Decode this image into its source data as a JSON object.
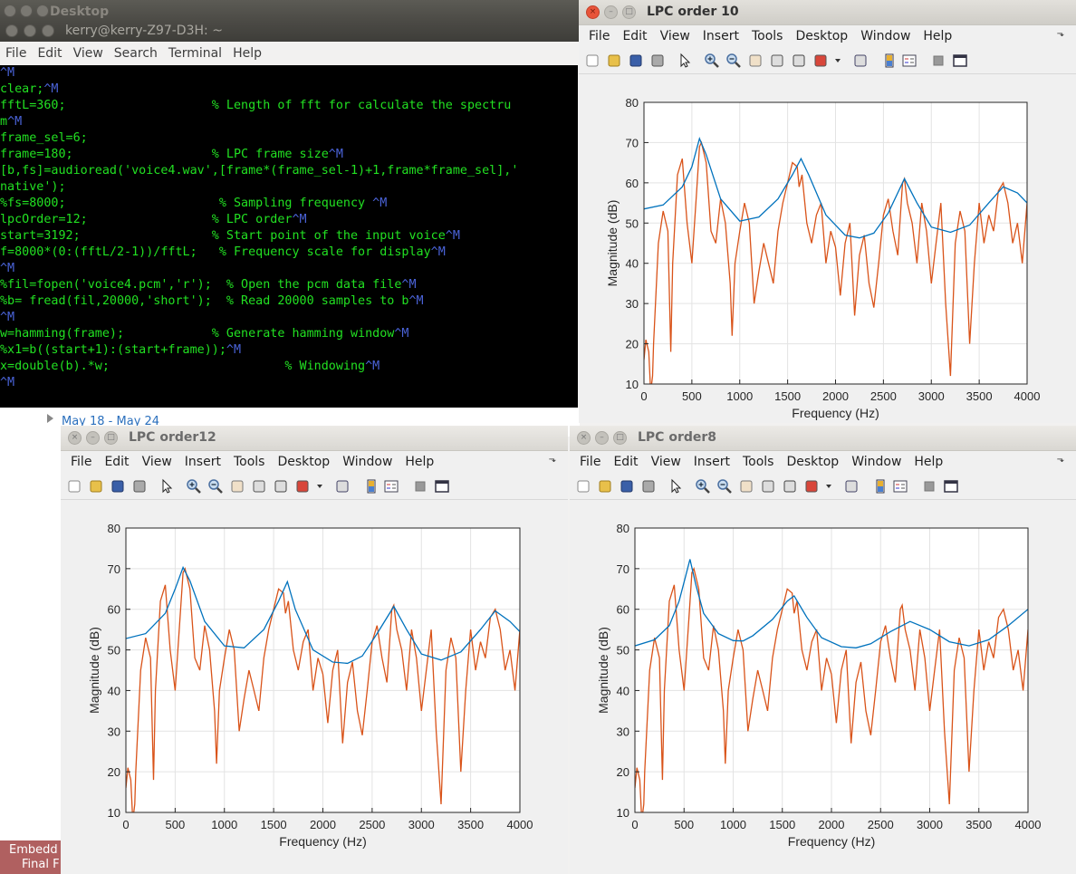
{
  "desktop": {
    "top_title": "Desktop",
    "calendar_range": "May 18 - May 24",
    "embedded_label_1": "Embedd",
    "embedded_label_2": "Final F"
  },
  "terminal": {
    "title": "kerry@kerry-Z97-D3H: ~",
    "menu": [
      "File",
      "Edit",
      "View",
      "Search",
      "Terminal",
      "Help"
    ],
    "lines": [
      {
        "code": "",
        "ctl": "^M"
      },
      {
        "code": "clear;",
        "ctl": "^M"
      },
      {
        "code": "fftL=360;                    % Length of fft for calculate the spectru",
        "ctl": ""
      },
      {
        "code": "m",
        "ctl": "^M"
      },
      {
        "code": "frame_sel=6;",
        "ctl": ""
      },
      {
        "code": "frame=180;                   % LPC frame size",
        "ctl": "^M"
      },
      {
        "code": "[b,fs]=audioread('voice4.wav',[frame*(frame_sel-1)+1,frame*frame_sel],'",
        "ctl": ""
      },
      {
        "code": "native');",
        "ctl": ""
      },
      {
        "code": "%fs=8000;                     % Sampling frequency ",
        "ctl": "^M"
      },
      {
        "code": "lpcOrder=12;                 % LPC order",
        "ctl": "^M"
      },
      {
        "code": "start=3192;                  % Start point of the input voice",
        "ctl": "^M"
      },
      {
        "code": "f=8000*(0:(fftL/2-1))/fftL;   % Frequency scale for display",
        "ctl": "^M"
      },
      {
        "code": "",
        "ctl": "^M"
      },
      {
        "code": "%fil=fopen('voice4.pcm','r');  % Open the pcm data file",
        "ctl": "^M"
      },
      {
        "code": "%b= fread(fil,20000,'short');  % Read 20000 samples to b",
        "ctl": "^M"
      },
      {
        "code": "",
        "ctl": "^M"
      },
      {
        "code": "w=hamming(frame);            % Generate hamming window",
        "ctl": "^M"
      },
      {
        "code": "%x1=b((start+1):(start+frame));",
        "ctl": "^M"
      },
      {
        "code": "x=double(b).*w;                        % Windowing",
        "ctl": "^M"
      },
      {
        "code": "",
        "ctl": "^M"
      }
    ]
  },
  "figure_menu": [
    "File",
    "Edit",
    "View",
    "Insert",
    "Tools",
    "Desktop",
    "Window",
    "Help"
  ],
  "colors": {
    "lpc_curve": "#0072bd",
    "spectrum_curve": "#d95319",
    "terminal_text": "#22e022",
    "terminal_ctl": "#4a63d8"
  },
  "figures": [
    {
      "id": "lpc10",
      "title": "LPC order 10",
      "chart_data": {
        "type": "line",
        "xlabel": "Frequency (Hz)",
        "ylabel": "Magnitude (dB)",
        "xlim": [
          0,
          4000
        ],
        "ylim": [
          10,
          80
        ],
        "xticks": [
          0,
          500,
          1000,
          1500,
          2000,
          2500,
          3000,
          3500,
          4000
        ],
        "yticks": [
          10,
          20,
          30,
          40,
          50,
          60,
          70,
          80
        ],
        "grid": true,
        "series": [
          {
            "key": "lpc",
            "x": [
              0,
              200,
              400,
              500,
              580,
              650,
              800,
              1000,
              1200,
              1400,
              1550,
              1640,
              1720,
              1900,
              2100,
              2250,
              2400,
              2550,
              2720,
              2850,
              3000,
              3200,
              3400,
              3600,
              3750,
              3900,
              4000
            ],
            "y": [
              53.5,
              54.5,
              59,
              64,
              71,
              67,
              56,
              50.5,
              51.5,
              56,
              62,
              66,
              62,
              52,
              47,
              46.3,
              47.5,
              52.5,
              61,
              55,
              49,
              47.7,
              49.5,
              55,
              59,
              57.5,
              55
            ]
          },
          {
            "key": "spectrum",
            "x": [
              0,
              20,
              50,
              70,
              90,
              100,
              150,
              200,
              250,
              280,
              300,
              350,
              400,
              450,
              500,
              550,
              580,
              600,
              650,
              700,
              750,
              800,
              850,
              900,
              920,
              950,
              1000,
              1050,
              1100,
              1150,
              1200,
              1250,
              1300,
              1350,
              1400,
              1450,
              1500,
              1550,
              1600,
              1620,
              1650,
              1700,
              1750,
              1800,
              1850,
              1900,
              1950,
              2000,
              2050,
              2100,
              2150,
              2200,
              2250,
              2300,
              2350,
              2400,
              2450,
              2500,
              2550,
              2600,
              2650,
              2700,
              2720,
              2750,
              2800,
              2850,
              2900,
              2950,
              3000,
              3050,
              3100,
              3150,
              3200,
              3250,
              3300,
              3350,
              3400,
              3450,
              3500,
              3550,
              3600,
              3650,
              3700,
              3750,
              3800,
              3850,
              3900,
              3950,
              4000
            ],
            "y": [
              16,
              21,
              18,
              8,
              12,
              20,
              45,
              53,
              48,
              18,
              40,
              62,
              66,
              50,
              40,
              58,
              69,
              70,
              65,
              48,
              45,
              56,
              50,
              35,
              22,
              40,
              48,
              55,
              50,
              30,
              38,
              45,
              40,
              35,
              48,
              55,
              60,
              65,
              64,
              59,
              62,
              50,
              45,
              52,
              55,
              40,
              48,
              44,
              32,
              45,
              50,
              27,
              42,
              47,
              35,
              29,
              40,
              52,
              56,
              48,
              42,
              60,
              61,
              55,
              50,
              40,
              55,
              48,
              35,
              45,
              55,
              30,
              12,
              45,
              53,
              48,
              20,
              40,
              55,
              45,
              52,
              48,
              58,
              60,
              55,
              45,
              50,
              40,
              55
            ]
          }
        ]
      }
    },
    {
      "id": "lpc12",
      "title": "LPC order12",
      "chart_data": {
        "type": "line",
        "xlabel": "Frequency (Hz)",
        "ylabel": "Magnitude (dB)",
        "xlim": [
          0,
          4000
        ],
        "ylim": [
          10,
          80
        ],
        "xticks": [
          0,
          500,
          1000,
          1500,
          2000,
          2500,
          3000,
          3500,
          4000
        ],
        "yticks": [
          10,
          20,
          30,
          40,
          50,
          60,
          70,
          80
        ],
        "grid": true,
        "series": [
          {
            "key": "lpc",
            "x": [
              0,
              200,
              400,
              500,
              580,
              650,
              800,
              1000,
              1200,
              1400,
              1550,
              1640,
              1720,
              1900,
              2100,
              2250,
              2400,
              2550,
              2720,
              2850,
              3000,
              3200,
              3400,
              3600,
              3750,
              3900,
              4000
            ],
            "y": [
              52.8,
              54,
              59,
              65,
              70.3,
              67,
              57,
              51,
              50.5,
              55,
              62,
              66.8,
              60,
              50,
              47,
              46.7,
              48.5,
              54,
              60.7,
              55,
              49,
              47.5,
              49.5,
              55,
              59.6,
              57,
              54.5
            ]
          },
          {
            "key": "spectrum",
            "x": [
              0,
              20,
              50,
              70,
              90,
              100,
              150,
              200,
              250,
              280,
              300,
              350,
              400,
              450,
              500,
              550,
              580,
              600,
              650,
              700,
              750,
              800,
              850,
              900,
              920,
              950,
              1000,
              1050,
              1100,
              1150,
              1200,
              1250,
              1300,
              1350,
              1400,
              1450,
              1500,
              1550,
              1600,
              1620,
              1650,
              1700,
              1750,
              1800,
              1850,
              1900,
              1950,
              2000,
              2050,
              2100,
              2150,
              2200,
              2250,
              2300,
              2350,
              2400,
              2450,
              2500,
              2550,
              2600,
              2650,
              2700,
              2720,
              2750,
              2800,
              2850,
              2900,
              2950,
              3000,
              3050,
              3100,
              3150,
              3200,
              3250,
              3300,
              3350,
              3400,
              3450,
              3500,
              3550,
              3600,
              3650,
              3700,
              3750,
              3800,
              3850,
              3900,
              3950,
              4000
            ],
            "y": [
              16,
              21,
              18,
              8,
              12,
              20,
              45,
              53,
              48,
              18,
              40,
              62,
              66,
              50,
              40,
              58,
              69,
              70,
              65,
              48,
              45,
              56,
              50,
              35,
              22,
              40,
              48,
              55,
              50,
              30,
              38,
              45,
              40,
              35,
              48,
              55,
              60,
              65,
              64,
              59,
              62,
              50,
              45,
              52,
              55,
              40,
              48,
              44,
              32,
              45,
              50,
              27,
              42,
              47,
              35,
              29,
              40,
              52,
              56,
              48,
              42,
              60,
              61,
              55,
              50,
              40,
              55,
              48,
              35,
              45,
              55,
              30,
              12,
              45,
              53,
              48,
              20,
              40,
              55,
              45,
              52,
              48,
              58,
              60,
              55,
              45,
              50,
              40,
              55
            ]
          }
        ]
      }
    },
    {
      "id": "lpc8",
      "title": "LPC order8",
      "chart_data": {
        "type": "line",
        "xlabel": "Frequency (Hz)",
        "ylabel": "Magnitude (dB)",
        "xlim": [
          0,
          4000
        ],
        "ylim": [
          10,
          80
        ],
        "xticks": [
          0,
          500,
          1000,
          1500,
          2000,
          2500,
          3000,
          3500,
          4000
        ],
        "yticks": [
          10,
          20,
          30,
          40,
          50,
          60,
          70,
          80
        ],
        "grid": true,
        "series": [
          {
            "key": "lpc",
            "x": [
              0,
              200,
              350,
              450,
              520,
              560,
              620,
              700,
              850,
              1000,
              1100,
              1200,
              1400,
              1550,
              1620,
              1750,
              1900,
              2100,
              2250,
              2400,
              2600,
              2800,
              3000,
              3200,
              3400,
              3600,
              3800,
              4000
            ],
            "y": [
              51,
              52.5,
              56,
              62,
              68.5,
              72.3,
              66,
              59,
              54,
              52.3,
              52.2,
              53.5,
              57.5,
              62,
              63.3,
              58,
              53,
              50.8,
              50.5,
              51.5,
              54.5,
              57,
              55,
              52,
              51,
              52.5,
              56,
              60
            ]
          },
          {
            "key": "spectrum",
            "x": [
              0,
              20,
              50,
              70,
              90,
              100,
              150,
              200,
              250,
              280,
              300,
              350,
              400,
              450,
              500,
              550,
              580,
              600,
              650,
              700,
              750,
              800,
              850,
              900,
              920,
              950,
              1000,
              1050,
              1100,
              1150,
              1200,
              1250,
              1300,
              1350,
              1400,
              1450,
              1500,
              1550,
              1600,
              1620,
              1650,
              1700,
              1750,
              1800,
              1850,
              1900,
              1950,
              2000,
              2050,
              2100,
              2150,
              2200,
              2250,
              2300,
              2350,
              2400,
              2450,
              2500,
              2550,
              2600,
              2650,
              2700,
              2720,
              2750,
              2800,
              2850,
              2900,
              2950,
              3000,
              3050,
              3100,
              3150,
              3200,
              3250,
              3300,
              3350,
              3400,
              3450,
              3500,
              3550,
              3600,
              3650,
              3700,
              3750,
              3800,
              3850,
              3900,
              3950,
              4000
            ],
            "y": [
              16,
              21,
              18,
              8,
              12,
              20,
              45,
              53,
              48,
              18,
              40,
              62,
              66,
              50,
              40,
              58,
              69,
              70,
              65,
              48,
              45,
              56,
              50,
              35,
              22,
              40,
              48,
              55,
              50,
              30,
              38,
              45,
              40,
              35,
              48,
              55,
              60,
              65,
              64,
              59,
              62,
              50,
              45,
              52,
              55,
              40,
              48,
              44,
              32,
              45,
              50,
              27,
              42,
              47,
              35,
              29,
              40,
              52,
              56,
              48,
              42,
              60,
              61,
              55,
              50,
              40,
              55,
              48,
              35,
              45,
              55,
              30,
              12,
              45,
              53,
              48,
              20,
              40,
              55,
              45,
              52,
              48,
              58,
              60,
              55,
              45,
              50,
              40,
              55
            ]
          }
        ]
      }
    }
  ]
}
